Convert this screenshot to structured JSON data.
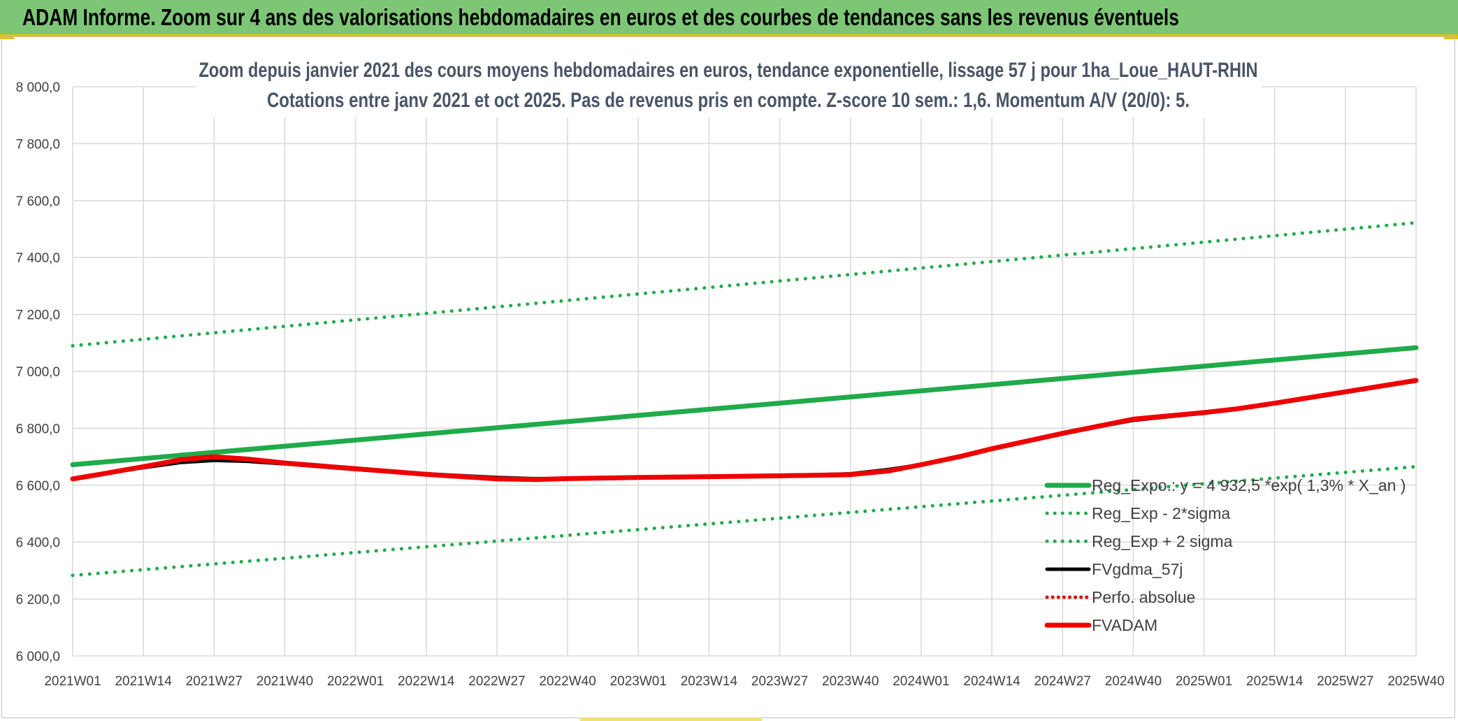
{
  "header": {
    "title": "ADAM Informe. Zoom sur 4 ans des valorisations hebdomadaires en euros et des courbes de tendances sans les revenus éventuels"
  },
  "chart_data": {
    "type": "line",
    "title": "Zoom depuis janvier 2021 des cours moyens hebdomadaires en euros, tendance exponentielle, lissage 57 j pour 1ha_Loue_HAUT-RHIN",
    "subtitle": "Cotations entre janv 2021 et oct 2025. Pas de revenus pris en compte. Z-score 10 sem.: 1,6. Momentum A/V (20/0): 5.",
    "xlabel": "",
    "ylabel": "",
    "x_ticks": [
      "2021W01",
      "2021W14",
      "2021W27",
      "2021W40",
      "2022W01",
      "2022W14",
      "2022W27",
      "2022W40",
      "2023W01",
      "2023W14",
      "2023W27",
      "2023W40",
      "2024W01",
      "2024W14",
      "2024W27",
      "2024W40",
      "2025W01",
      "2025W14",
      "2025W27",
      "2025W40"
    ],
    "y_ticks": [
      "8 000,0",
      "7 800,0",
      "7 600,0",
      "7 400,0",
      "7 200,0",
      "7 000,0",
      "6 800,0",
      "6 600,0",
      "6 400,0",
      "6 200,0",
      "6 000,0"
    ],
    "ylim": [
      6000,
      8000
    ],
    "xlim": [
      0,
      247
    ],
    "grid": true,
    "legend_position": "right",
    "series": [
      {
        "name": "Reg_Expo.: y = 4 932,5 *exp( 1,3% *  X_an )",
        "style": "solid",
        "width": 7,
        "color": "#1fab4a",
        "x": [
          0,
          247
        ],
        "y": [
          6672,
          7083
        ]
      },
      {
        "name": "Reg_Exp - 2*sigma",
        "style": "dotted",
        "width": 5,
        "color": "#1fab4a",
        "x": [
          0,
          247
        ],
        "y": [
          6283,
          6665
        ]
      },
      {
        "name": "Reg_Exp + 2 sigma",
        "style": "dotted",
        "width": 5,
        "color": "#1fab4a",
        "x": [
          0,
          247
        ],
        "y": [
          7090,
          7522
        ]
      },
      {
        "name": "FVgdma_57j",
        "style": "solid",
        "width": 5,
        "color": "#000000",
        "x": [
          0,
          5,
          13,
          20,
          26,
          32,
          39,
          52,
          65,
          78,
          85,
          91,
          104,
          117,
          130,
          143,
          150,
          156,
          163,
          169,
          182,
          195,
          208,
          214,
          221,
          234,
          247
        ],
        "y": [
          6622,
          6638,
          6662,
          6680,
          6687,
          6684,
          6675,
          6655,
          6640,
          6627,
          6623,
          6623,
          6627,
          6630,
          6633,
          6640,
          6655,
          6672,
          6700,
          6728,
          6782,
          6828,
          6853,
          6868,
          6888,
          6926,
          6968
        ]
      },
      {
        "name": "Perfo. absolue",
        "style": "dotted",
        "width": 3,
        "color": "#e00000",
        "x": [],
        "y": []
      },
      {
        "name": "FVADAM",
        "style": "solid",
        "width": 7,
        "color": "#ee0000",
        "x": [
          0,
          5,
          13,
          20,
          26,
          32,
          39,
          52,
          65,
          78,
          85,
          91,
          104,
          117,
          130,
          143,
          150,
          156,
          163,
          169,
          182,
          195,
          208,
          214,
          221,
          234,
          247
        ],
        "y": [
          6622,
          6638,
          6665,
          6690,
          6700,
          6692,
          6678,
          6658,
          6638,
          6622,
          6620,
          6623,
          6627,
          6630,
          6633,
          6637,
          6650,
          6672,
          6700,
          6728,
          6782,
          6832,
          6855,
          6868,
          6888,
          6928,
          6968
        ]
      }
    ]
  }
}
